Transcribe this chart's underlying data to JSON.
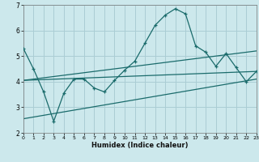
{
  "title": "",
  "xlabel": "Humidex (Indice chaleur)",
  "bg_color": "#cce8ec",
  "grid_color": "#aacdd4",
  "line_color": "#1a6b6b",
  "xlim": [
    0,
    23
  ],
  "ylim": [
    2,
    7
  ],
  "xticks": [
    0,
    1,
    2,
    3,
    4,
    5,
    6,
    7,
    8,
    9,
    10,
    11,
    12,
    13,
    14,
    15,
    16,
    17,
    18,
    19,
    20,
    21,
    22,
    23
  ],
  "yticks": [
    2,
    3,
    4,
    5,
    6,
    7
  ],
  "main_x": [
    0,
    1,
    2,
    3,
    4,
    5,
    6,
    7,
    8,
    9,
    10,
    11,
    12,
    13,
    14,
    15,
    16,
    17,
    18,
    19,
    20,
    21,
    22,
    23
  ],
  "main_y": [
    5.3,
    4.5,
    3.6,
    2.45,
    3.55,
    4.1,
    4.1,
    3.75,
    3.6,
    4.05,
    4.45,
    4.8,
    5.5,
    6.2,
    6.6,
    6.85,
    6.65,
    5.4,
    5.15,
    4.6,
    5.1,
    4.55,
    4.0,
    4.4
  ],
  "trend1_x": [
    0,
    23
  ],
  "trend1_y": [
    4.05,
    5.2
  ],
  "trend2_x": [
    0,
    23
  ],
  "trend2_y": [
    4.05,
    4.4
  ],
  "trend3_x": [
    0,
    23
  ],
  "trend3_y": [
    2.55,
    4.1
  ]
}
